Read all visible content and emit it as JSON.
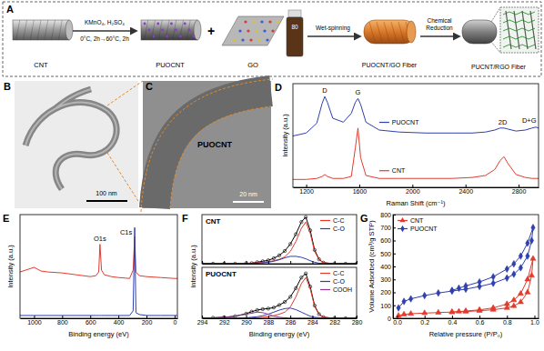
{
  "schematic": {
    "label": "A",
    "nodes": [
      "CNT",
      "PUOCNT",
      "GO",
      "PUOCNT/GO Fiber",
      "PUCNT/RGO Fiber"
    ],
    "steps": [
      {
        "lines": [
          "KMnO₄, H₂SO₄",
          "0°C, 2h→60°C, 2h"
        ]
      },
      {
        "lines": [
          "Wet-spinning"
        ]
      },
      {
        "lines": [
          "Chemical",
          "Reduction"
        ]
      }
    ],
    "plus": "+",
    "vial": "80"
  },
  "images": [
    {
      "label": "B",
      "scale_bar": "100 nm"
    },
    {
      "label": "C",
      "scale_bar": "20 nm",
      "caption": "PUOCNT"
    }
  ],
  "chart_data": [
    {
      "panel_label": "D",
      "type": "line",
      "x_label": "Raman Shift (cm⁻¹)",
      "y_label": "Intensity (a.u.)",
      "x": [
        1100,
        1200,
        1280,
        1320,
        1340,
        1360,
        1400,
        1480,
        1540,
        1570,
        1590,
        1610,
        1650,
        1750,
        1900,
        2100,
        2300,
        2450,
        2550,
        2620,
        2660,
        2690,
        2720,
        2780,
        2850,
        2900,
        2930,
        2950
      ],
      "series": [
        {
          "name": "PUOCNT",
          "color": "#2f3fae",
          "values": [
            52,
            55,
            65,
            85,
            92,
            86,
            70,
            66,
            75,
            86,
            90,
            84,
            66,
            58,
            56,
            55,
            55,
            55,
            56,
            58,
            60,
            60,
            59,
            57,
            58,
            60,
            61,
            60
          ]
        },
        {
          "name": "CNT",
          "color": "#e23b2e",
          "values": [
            8,
            8,
            9,
            11,
            13,
            11,
            9,
            9,
            11,
            40,
            60,
            30,
            12,
            9,
            9,
            9,
            9,
            10,
            12,
            18,
            27,
            31,
            24,
            13,
            10,
            9,
            9,
            9
          ]
        }
      ],
      "xlim": [
        1100,
        2950
      ],
      "ylim": [
        0,
        105
      ],
      "xticks": [
        1200,
        1600,
        2000,
        2400,
        2800
      ],
      "tick_labels": "x",
      "legend": "inline",
      "annotations": [
        {
          "text": "D",
          "x": 1340,
          "y": 96
        },
        {
          "text": "G",
          "x": 1590,
          "y": 94
        },
        {
          "text": "2D",
          "x": 2680,
          "y": 64
        },
        {
          "text": "D+G",
          "x": 2880,
          "y": 65
        }
      ]
    },
    {
      "panel_label": "E",
      "type": "line",
      "x_label": "Binding energy (eV)",
      "y_label": "Intensity (a.u.)",
      "x": [
        1100,
        1000,
        950,
        900,
        800,
        700,
        600,
        560,
        540,
        531,
        520,
        500,
        450,
        400,
        320,
        295,
        284,
        275,
        250,
        200,
        100,
        0,
        -20
      ],
      "series": [
        {
          "color": "#e23b2e",
          "values": [
            50,
            55,
            51,
            50,
            49,
            47,
            45,
            46,
            50,
            80,
            52,
            47,
            45,
            44,
            43,
            52,
            88,
            50,
            46,
            45,
            44,
            43,
            43
          ]
        },
        {
          "color": "#2f3fae",
          "values": [
            3,
            3,
            3,
            3,
            3,
            3,
            3,
            3,
            3,
            3,
            3,
            3,
            3,
            3,
            3,
            8,
            98,
            6,
            4,
            3,
            3,
            3,
            3
          ]
        }
      ],
      "xlim": [
        1100,
        -20
      ],
      "ylim": [
        0,
        112
      ],
      "xticks": [
        1000,
        800,
        600,
        400,
        200,
        0
      ],
      "tick_labels": "x",
      "annotations": [
        {
          "text": "O1s",
          "x": 531,
          "y": 84
        },
        {
          "text": "C1s",
          "x": 345,
          "y": 90
        }
      ]
    },
    {
      "panel_label": "F",
      "type": "line",
      "title": "CNT",
      "y_label": "Intensity (a.u.)",
      "x": [
        294,
        293,
        292,
        291,
        290,
        289.5,
        289,
        288.5,
        288,
        287.5,
        287,
        286.5,
        286,
        285.5,
        285,
        284.6,
        284.2,
        283.8,
        283.4,
        283,
        282,
        281,
        280
      ],
      "series": [
        {
          "color": "#000000",
          "marker": "circle",
          "values": [
            0,
            0,
            0,
            0,
            1,
            1,
            3,
            5,
            7,
            11,
            17,
            26,
            40,
            60,
            85,
            95,
            68,
            28,
            9,
            2,
            0,
            0,
            0
          ]
        },
        {
          "name": "C-C",
          "color": "#e23b2e",
          "values": [
            0,
            0,
            0,
            0,
            1,
            1,
            2,
            3,
            4,
            6,
            9,
            14,
            25,
            45,
            72,
            85,
            62,
            25,
            8,
            2,
            0,
            0,
            0
          ]
        },
        {
          "name": "C-O",
          "color": "#2f3fae",
          "values": [
            0,
            0,
            0,
            0,
            0,
            0,
            1,
            2,
            3,
            5,
            8,
            12,
            15,
            15,
            13,
            10,
            6,
            3,
            1,
            0,
            0,
            0,
            0
          ]
        }
      ],
      "xlim": [
        294,
        280
      ],
      "ylim": [
        0,
        100
      ],
      "xticks": [
        294,
        292,
        290,
        288,
        286,
        284,
        282,
        280
      ],
      "tick_labels": false,
      "legend": "upper right"
    },
    {
      "type": "line",
      "title": "PUOCNT",
      "x_label": "Binding energy (eV)",
      "x": [
        294,
        293,
        292,
        291,
        290,
        289.5,
        289,
        288.5,
        288,
        287.5,
        287,
        286.5,
        286,
        285.5,
        285,
        284.6,
        284.2,
        283.8,
        283.4,
        283,
        282,
        281,
        280
      ],
      "series": [
        {
          "color": "#000000",
          "marker": "circle",
          "values": [
            0,
            1,
            2,
            4,
            9,
            13,
            16,
            18,
            19,
            21,
            26,
            32,
            42,
            59,
            80,
            88,
            62,
            25,
            8,
            2,
            0,
            0,
            0
          ]
        },
        {
          "name": "C-C",
          "color": "#e23b2e",
          "values": [
            0,
            0,
            0,
            0,
            0,
            1,
            1,
            2,
            3,
            5,
            8,
            12,
            22,
            42,
            68,
            80,
            58,
            23,
            7,
            2,
            0,
            0,
            0
          ]
        },
        {
          "name": "C-O",
          "color": "#2f3fae",
          "values": [
            0,
            0,
            0,
            0,
            1,
            2,
            3,
            5,
            8,
            12,
            16,
            19,
            20,
            17,
            12,
            8,
            4,
            2,
            1,
            0,
            0,
            0,
            0
          ]
        },
        {
          "name": "COOH",
          "color": "#8e3a8e",
          "values": [
            0,
            1,
            2,
            4,
            8,
            10,
            12,
            11,
            8,
            4,
            2,
            1,
            0,
            0,
            0,
            0,
            0,
            0,
            0,
            0,
            0,
            0,
            0
          ]
        }
      ],
      "xlim": [
        294,
        280
      ],
      "ylim": [
        0,
        100
      ],
      "xticks": [
        294,
        292,
        290,
        288,
        286,
        284,
        282,
        280
      ],
      "tick_labels": "x",
      "legend": "upper right"
    },
    {
      "panel_label": "G",
      "type": "line",
      "x_label": "Relative pressure (P/P₀)",
      "y_label": "Volume Adsorbed (cm³/g STP)",
      "x": [
        0.01,
        0.05,
        0.1,
        0.2,
        0.3,
        0.4,
        0.5,
        0.6,
        0.7,
        0.8,
        0.85,
        0.9,
        0.95,
        0.98,
        0.99,
        0.95,
        0.9,
        0.85,
        0.8,
        0.7,
        0.6,
        0.5,
        0.45,
        0.4
      ],
      "series": [
        {
          "name": "CNT",
          "color": "#e23b2e",
          "marker": "triangle",
          "values": [
            20,
            30,
            35,
            40,
            44,
            48,
            52,
            58,
            66,
            80,
            95,
            125,
            200,
            330,
            460,
            300,
            190,
            140,
            110,
            80,
            65,
            56,
            52,
            48
          ]
        },
        {
          "name": "PUOCNT",
          "color": "#2f3fae",
          "marker": "diamond",
          "values": [
            80,
            130,
            150,
            175,
            195,
            210,
            225,
            245,
            270,
            310,
            340,
            390,
            480,
            600,
            700,
            580,
            480,
            420,
            380,
            320,
            280,
            250,
            232,
            215
          ]
        }
      ],
      "xlim": [
        -0.03,
        1.03
      ],
      "ylim": [
        0,
        800
      ],
      "xticks": [
        {
          "value": 0,
          "label": "0.0"
        },
        0.2,
        0.4,
        0.6,
        0.8,
        {
          "value": 1,
          "label": "1.0"
        }
      ],
      "yticks": [
        0,
        100,
        200,
        300,
        400,
        500,
        600,
        700,
        800
      ],
      "legend": "upper left"
    }
  ]
}
